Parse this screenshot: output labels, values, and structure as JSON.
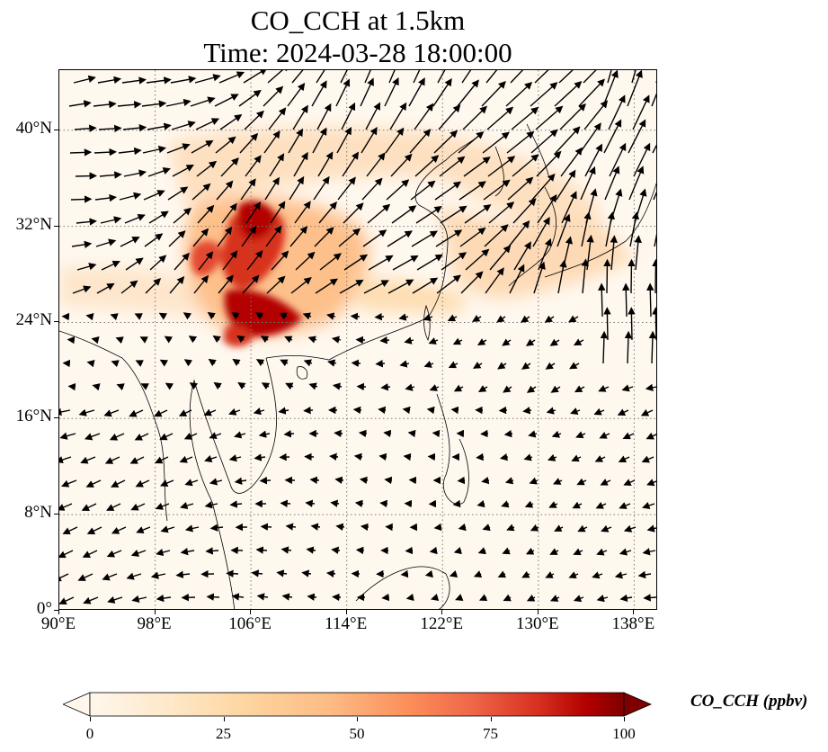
{
  "title": {
    "line1": "CO_CCH at 1.5km",
    "line2": "Time: 2024-03-28 18:00:00"
  },
  "map": {
    "variable": "CO_CCH",
    "height": "1.5km",
    "time": "2024-03-28 18:00:00",
    "lon_range": [
      90,
      140
    ],
    "lat_range": [
      0,
      45
    ],
    "lon_ticks": [
      {
        "value": 90,
        "label": "90°E"
      },
      {
        "value": 98,
        "label": "98°E"
      },
      {
        "value": 106,
        "label": "106°E"
      },
      {
        "value": 114,
        "label": "114°E"
      },
      {
        "value": 122,
        "label": "122°E"
      },
      {
        "value": 130,
        "label": "130°E"
      },
      {
        "value": 138,
        "label": "138°E"
      }
    ],
    "lat_ticks": [
      {
        "value": 0,
        "label": "0°"
      },
      {
        "value": 8,
        "label": "8°N"
      },
      {
        "value": 16,
        "label": "16°N"
      },
      {
        "value": 24,
        "label": "24°N"
      },
      {
        "value": 32,
        "label": "32°N"
      },
      {
        "value": 40,
        "label": "40°N"
      }
    ],
    "gridlines": "dotted",
    "field_colors": {
      "low": "#fff5eb",
      "mid": "#fdae6b",
      "high": "#7f0000"
    }
  },
  "colorbar": {
    "label": "CO_CCH (ppbv)",
    "min": 0,
    "max": 100,
    "ticks": [
      {
        "value": 0,
        "label": "0"
      },
      {
        "value": 25,
        "label": "25"
      },
      {
        "value": 50,
        "label": "50"
      },
      {
        "value": 75,
        "label": "75"
      },
      {
        "value": 100,
        "label": "100"
      }
    ],
    "extend": "both",
    "colormap": "OrRd"
  }
}
